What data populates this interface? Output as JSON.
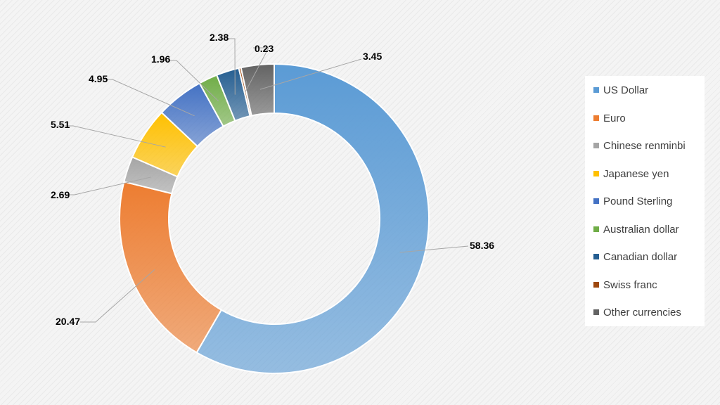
{
  "chart_data": {
    "type": "pie",
    "variant": "donut",
    "title": "",
    "legend_position": "right",
    "series": [
      {
        "name": "US Dollar",
        "value": 58.36,
        "label": "58.36",
        "color": "#5b9bd5"
      },
      {
        "name": "Euro",
        "value": 20.47,
        "label": "20.47",
        "color": "#ed7d31"
      },
      {
        "name": "Chinese renminbi",
        "value": 2.69,
        "label": "2.69",
        "color": "#a5a5a5"
      },
      {
        "name": "Japanese yen",
        "value": 5.51,
        "label": "5.51",
        "color": "#ffc000"
      },
      {
        "name": "Pound Sterling",
        "value": 4.95,
        "label": "4.95",
        "color": "#4472c4"
      },
      {
        "name": "Australian dollar",
        "value": 1.96,
        "label": "1.96",
        "color": "#70ad47"
      },
      {
        "name": "Canadian dollar",
        "value": 2.38,
        "label": "2.38",
        "color": "#255e91"
      },
      {
        "name": "Swiss franc",
        "value": 0.23,
        "label": "0.23",
        "color": "#9e480e"
      },
      {
        "name": "Other currencies",
        "value": 3.45,
        "label": "3.45",
        "color": "#636363"
      }
    ]
  }
}
